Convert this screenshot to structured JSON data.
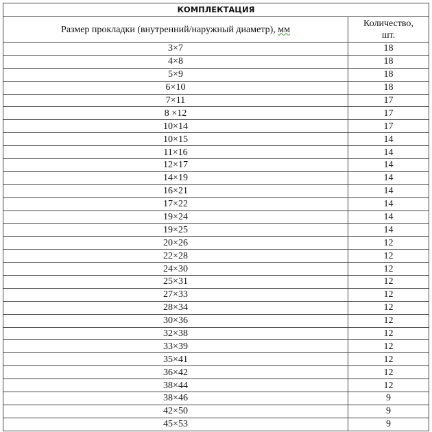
{
  "table": {
    "title": "КОМПЛЕКТАЦИЯ",
    "headers": {
      "size_prefix": "Размер прокладки (внутренний/наружный диаметр), ",
      "size_unit": "мм",
      "quantity_line1": "Количество,",
      "quantity_line2": "шт."
    },
    "rows": [
      {
        "size": "3×7",
        "qty": "18"
      },
      {
        "size": "4×8",
        "qty": "18"
      },
      {
        "size": "5×9",
        "qty": "18"
      },
      {
        "size": "6×10",
        "qty": "18"
      },
      {
        "size": "7×11",
        "qty": "17"
      },
      {
        "size": "8 ×12",
        "qty": "17"
      },
      {
        "size": "10×14",
        "qty": "17"
      },
      {
        "size": "10×15",
        "qty": "14"
      },
      {
        "size": "11×16",
        "qty": "14"
      },
      {
        "size": "12×17",
        "qty": "14"
      },
      {
        "size": "14×19",
        "qty": "14"
      },
      {
        "size": "16×21",
        "qty": "14"
      },
      {
        "size": "17×22",
        "qty": "14"
      },
      {
        "size": "19×24",
        "qty": "14"
      },
      {
        "size": "19×25",
        "qty": "14"
      },
      {
        "size": "20×26",
        "qty": "12"
      },
      {
        "size": "22×28",
        "qty": "12"
      },
      {
        "size": "24×30",
        "qty": "12"
      },
      {
        "size": "25×31",
        "qty": "12"
      },
      {
        "size": "27×33",
        "qty": "12"
      },
      {
        "size": "28×34",
        "qty": "12"
      },
      {
        "size": "30×36",
        "qty": "12"
      },
      {
        "size": "32×38",
        "qty": "12"
      },
      {
        "size": "33×39",
        "qty": "12"
      },
      {
        "size": "35×41",
        "qty": "12"
      },
      {
        "size": "36×42",
        "qty": "12"
      },
      {
        "size": "38×44",
        "qty": "12"
      },
      {
        "size": "38×46",
        "qty": "9"
      },
      {
        "size": "42×50",
        "qty": "9"
      },
      {
        "size": "45×53",
        "qty": "9"
      }
    ]
  }
}
